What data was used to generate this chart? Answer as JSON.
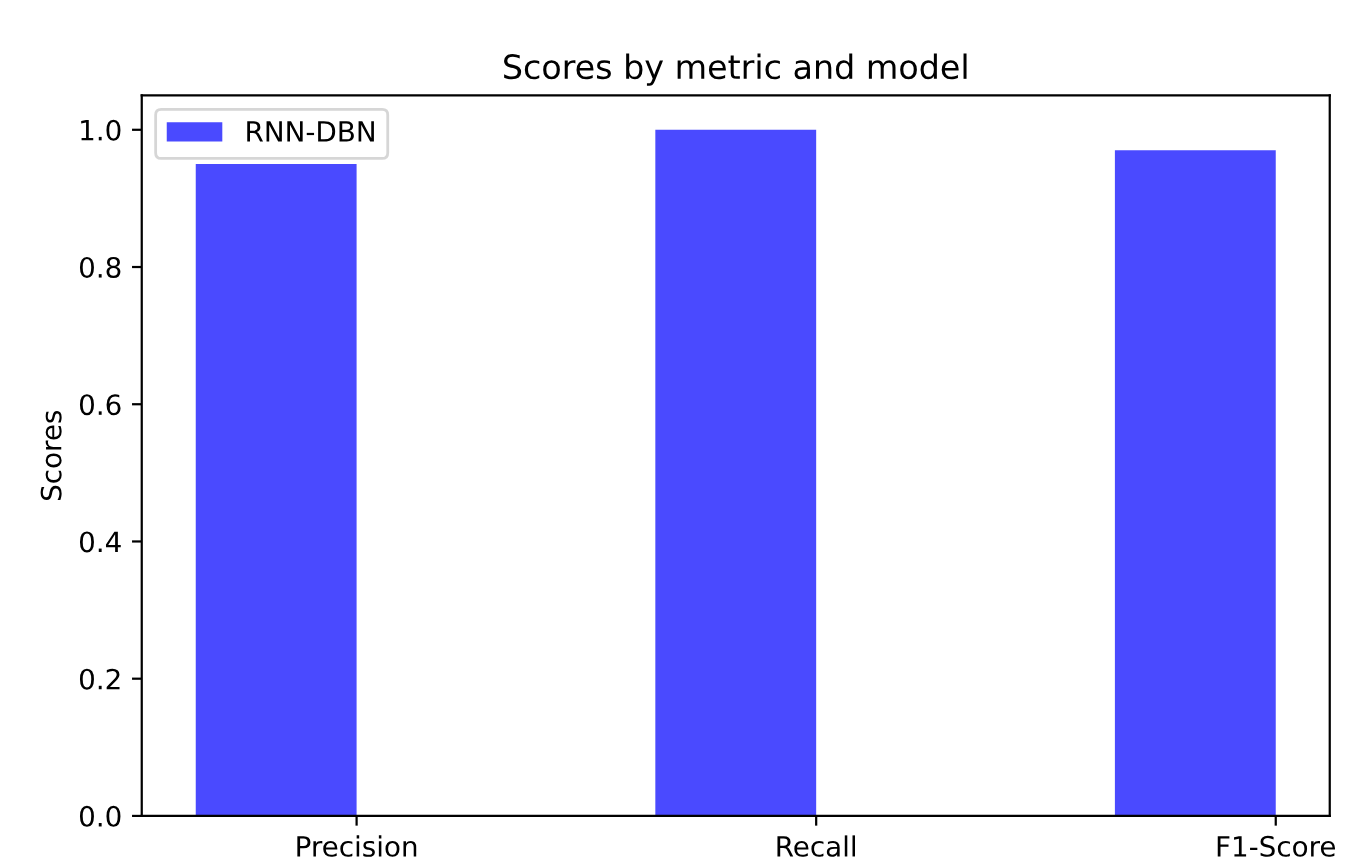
{
  "chart_data": {
    "type": "bar",
    "title": "Scores by metric and model",
    "ylabel": "Scores",
    "categories": [
      "Precision",
      "Recall",
      "F1-Score"
    ],
    "series": [
      {
        "name": "RNN-DBN",
        "color": "#4a4aff",
        "values": [
          0.95,
          1.0,
          0.97
        ]
      }
    ],
    "ylim": [
      0,
      1.05
    ],
    "yticks": [
      {
        "value": 0,
        "label": "0.0"
      },
      0.2,
      0.4,
      0.6,
      0.8,
      {
        "value": 1,
        "label": "1.0"
      }
    ],
    "grid": false,
    "legend": "top left"
  }
}
